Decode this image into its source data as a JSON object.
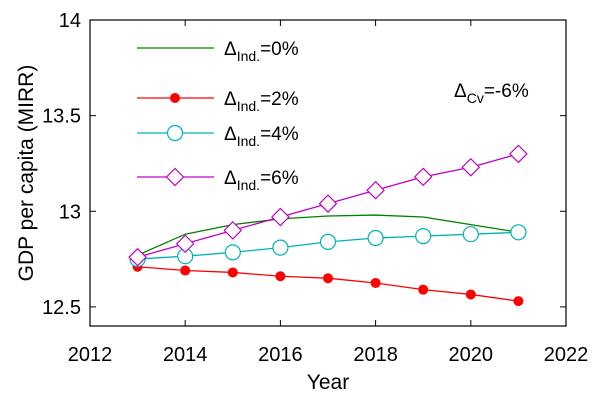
{
  "chart_data": {
    "type": "line",
    "xlabel": "Year",
    "ylabel": "GDP per capita (MIRR)",
    "xlim": [
      2012,
      2022
    ],
    "ylim": [
      12.4,
      14.0
    ],
    "xticks": [
      2012,
      2014,
      2016,
      2018,
      2020,
      2022
    ],
    "yticks": [
      12.5,
      13,
      13.5,
      14
    ],
    "xtick_labels": [
      "2012",
      "2014",
      "2016",
      "2018",
      "2020",
      "2022"
    ],
    "ytick_labels": [
      "12.5",
      "13",
      "13.5",
      "14"
    ],
    "legend_position": "top-left",
    "grid": false,
    "annotation": {
      "base": "Δ",
      "sub": "Cv",
      "rest": "=-6%",
      "position": "top-right"
    },
    "x": [
      2013,
      2014,
      2015,
      2016,
      2017,
      2018,
      2019,
      2020,
      2021
    ],
    "series": [
      {
        "label_base": "Δ",
        "label_sub": "Ind.",
        "label_rest": "=0%",
        "color": "#008000",
        "marker": "none",
        "values": [
          12.77,
          12.88,
          12.93,
          12.96,
          12.975,
          12.98,
          12.97,
          12.93,
          12.89
        ]
      },
      {
        "label_base": "Δ",
        "label_sub": "Ind.",
        "label_rest": "=2%",
        "color": "#ff0000",
        "marker": "filled-circle",
        "values": [
          12.71,
          12.69,
          12.68,
          12.66,
          12.65,
          12.625,
          12.59,
          12.565,
          12.53
        ]
      },
      {
        "label_base": "Δ",
        "label_sub": "Ind.",
        "label_rest": "=4%",
        "color": "#00b3b3",
        "marker": "open-circle",
        "values": [
          12.75,
          12.765,
          12.785,
          12.81,
          12.84,
          12.86,
          12.87,
          12.88,
          12.89
        ]
      },
      {
        "label_base": "Δ",
        "label_sub": "Ind.",
        "label_rest": "=6%",
        "color": "#c000c0",
        "marker": "open-diamond",
        "values": [
          12.76,
          12.83,
          12.9,
          12.97,
          13.04,
          13.11,
          13.18,
          13.23,
          13.3
        ]
      }
    ]
  }
}
